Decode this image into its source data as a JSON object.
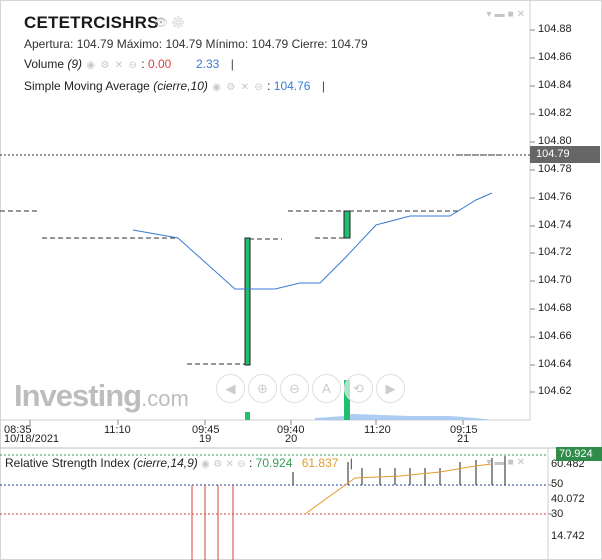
{
  "header": {
    "symbol": "CETETRCISHRS",
    "ohlc": {
      "open_label": "Apertura:",
      "open": "104.79",
      "high_label": "Máximo:",
      "high": "104.79",
      "low_label": "Mínimo:",
      "low": "104.79",
      "close_label": "Cierre:",
      "close": "104.79"
    }
  },
  "indicators": {
    "volume": {
      "name": "Volume",
      "param": "(9)",
      "value1": "0.00",
      "value2": "2.33"
    },
    "sma": {
      "name": "Simple Moving Average",
      "param": "(cierre,10)",
      "value": "104.76"
    }
  },
  "price_axis": {
    "labels": [
      "104.88",
      "104.86",
      "104.84",
      "104.82",
      "104.80",
      "104.78",
      "104.76",
      "104.74",
      "104.72",
      "104.70",
      "104.68",
      "104.66",
      "104.64",
      "104.62"
    ],
    "current_price": "104.79"
  },
  "time_axis": {
    "top": [
      "08:35",
      "11:10",
      "09:45",
      "09:40",
      "11:20",
      "09:15"
    ],
    "bottom": [
      "10/18/2021",
      "19",
      "20",
      "21"
    ]
  },
  "rsi": {
    "name": "Relative Strength Index",
    "param": "(cierre,14,9)",
    "value": "70.924",
    "signal": "61.837",
    "axis_labels": [
      "60.482",
      "50",
      "40.072",
      "30",
      "14.742"
    ],
    "current": "70.924"
  },
  "logo": {
    "main": "Investing",
    "suffix": ".com"
  },
  "colors": {
    "sma_line": "#3b7bd4",
    "candle_up": "#1fbf6f",
    "rsi_signal": "#e59a2f",
    "price_tag_bg": "#666666",
    "rsi_tag_bg": "#2f8c4a"
  },
  "icons": [
    "eye-icon",
    "gear-icon",
    "close-icon",
    "chevron-down-icon",
    "minimize-icon",
    "lock-icon"
  ]
}
